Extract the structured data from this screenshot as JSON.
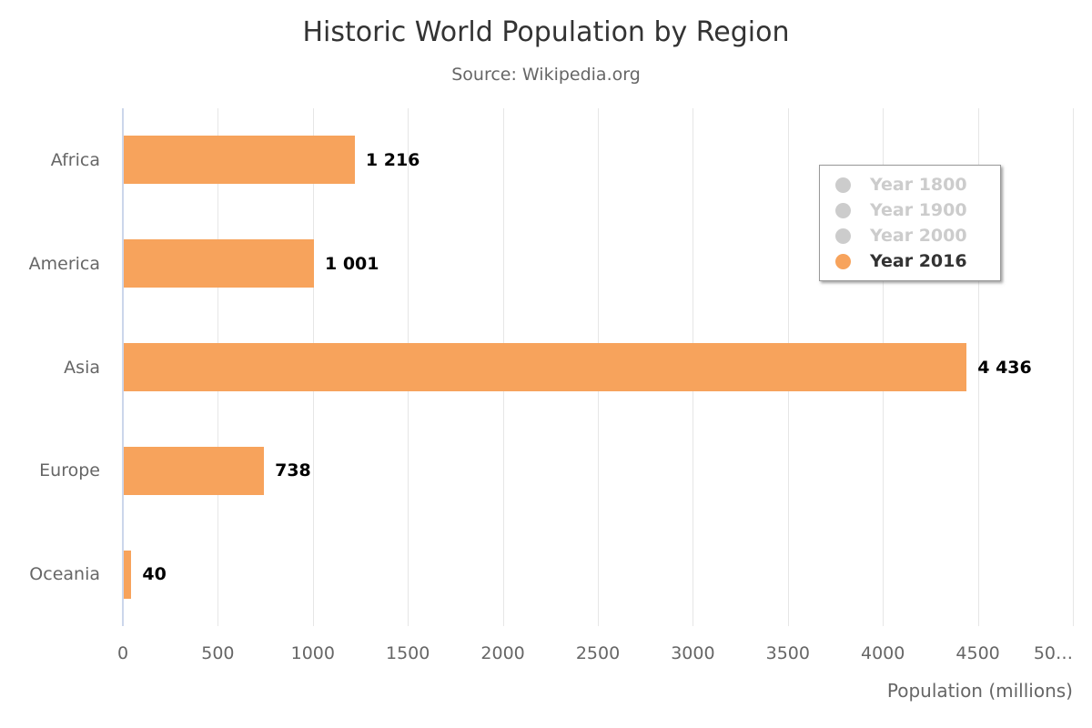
{
  "chart_data": {
    "type": "bar",
    "title": "Historic World Population by Region",
    "subtitle": "Source: Wikipedia.org",
    "categories": [
      "Africa",
      "America",
      "Asia",
      "Europe",
      "Oceania"
    ],
    "series": [
      {
        "name": "Year 1800",
        "visible": false
      },
      {
        "name": "Year 1900",
        "visible": false
      },
      {
        "name": "Year 2000",
        "visible": false
      },
      {
        "name": "Year 2016",
        "visible": true,
        "values": [
          1216,
          1001,
          4436,
          738,
          40
        ]
      }
    ],
    "data_labels": [
      "1 216",
      "1 001",
      "4 436",
      "738",
      "40"
    ],
    "xlabel": "Population (millions)",
    "xlim": [
      0,
      5000
    ],
    "grid": true,
    "x_ticks": [
      {
        "value": 0,
        "label": "0"
      },
      {
        "value": 500,
        "label": "500"
      },
      {
        "value": 1000,
        "label": "1000"
      },
      {
        "value": 1500,
        "label": "1500"
      },
      {
        "value": 2000,
        "label": "2000"
      },
      {
        "value": 2500,
        "label": "2500"
      },
      {
        "value": 3000,
        "label": "3000"
      },
      {
        "value": 3500,
        "label": "3500"
      },
      {
        "value": 4000,
        "label": "4000"
      },
      {
        "value": 4500,
        "label": "4500"
      },
      {
        "value": 5000,
        "label": "50…",
        "align": "right"
      }
    ],
    "legend": {
      "position": "right-top",
      "items": [
        {
          "label": "Year 1800",
          "color": "#cccccc",
          "disabled": true
        },
        {
          "label": "Year 1900",
          "color": "#cccccc",
          "disabled": true
        },
        {
          "label": "Year 2000",
          "color": "#cccccc",
          "disabled": true
        },
        {
          "label": "Year 2016",
          "color": "#f7a35c",
          "disabled": false
        }
      ]
    },
    "colors": {
      "bar": "#f7a35c",
      "title": "#333333",
      "subtitle": "#666666",
      "axis_label": "#666666",
      "category_label": "#666666",
      "data_label": "#000000",
      "gridline": "#e6e6e6",
      "axis_line": "#ccd6eb",
      "legend_disabled_text": "#cccccc",
      "legend_active_text": "#333333",
      "legend_border": "#999999"
    }
  }
}
